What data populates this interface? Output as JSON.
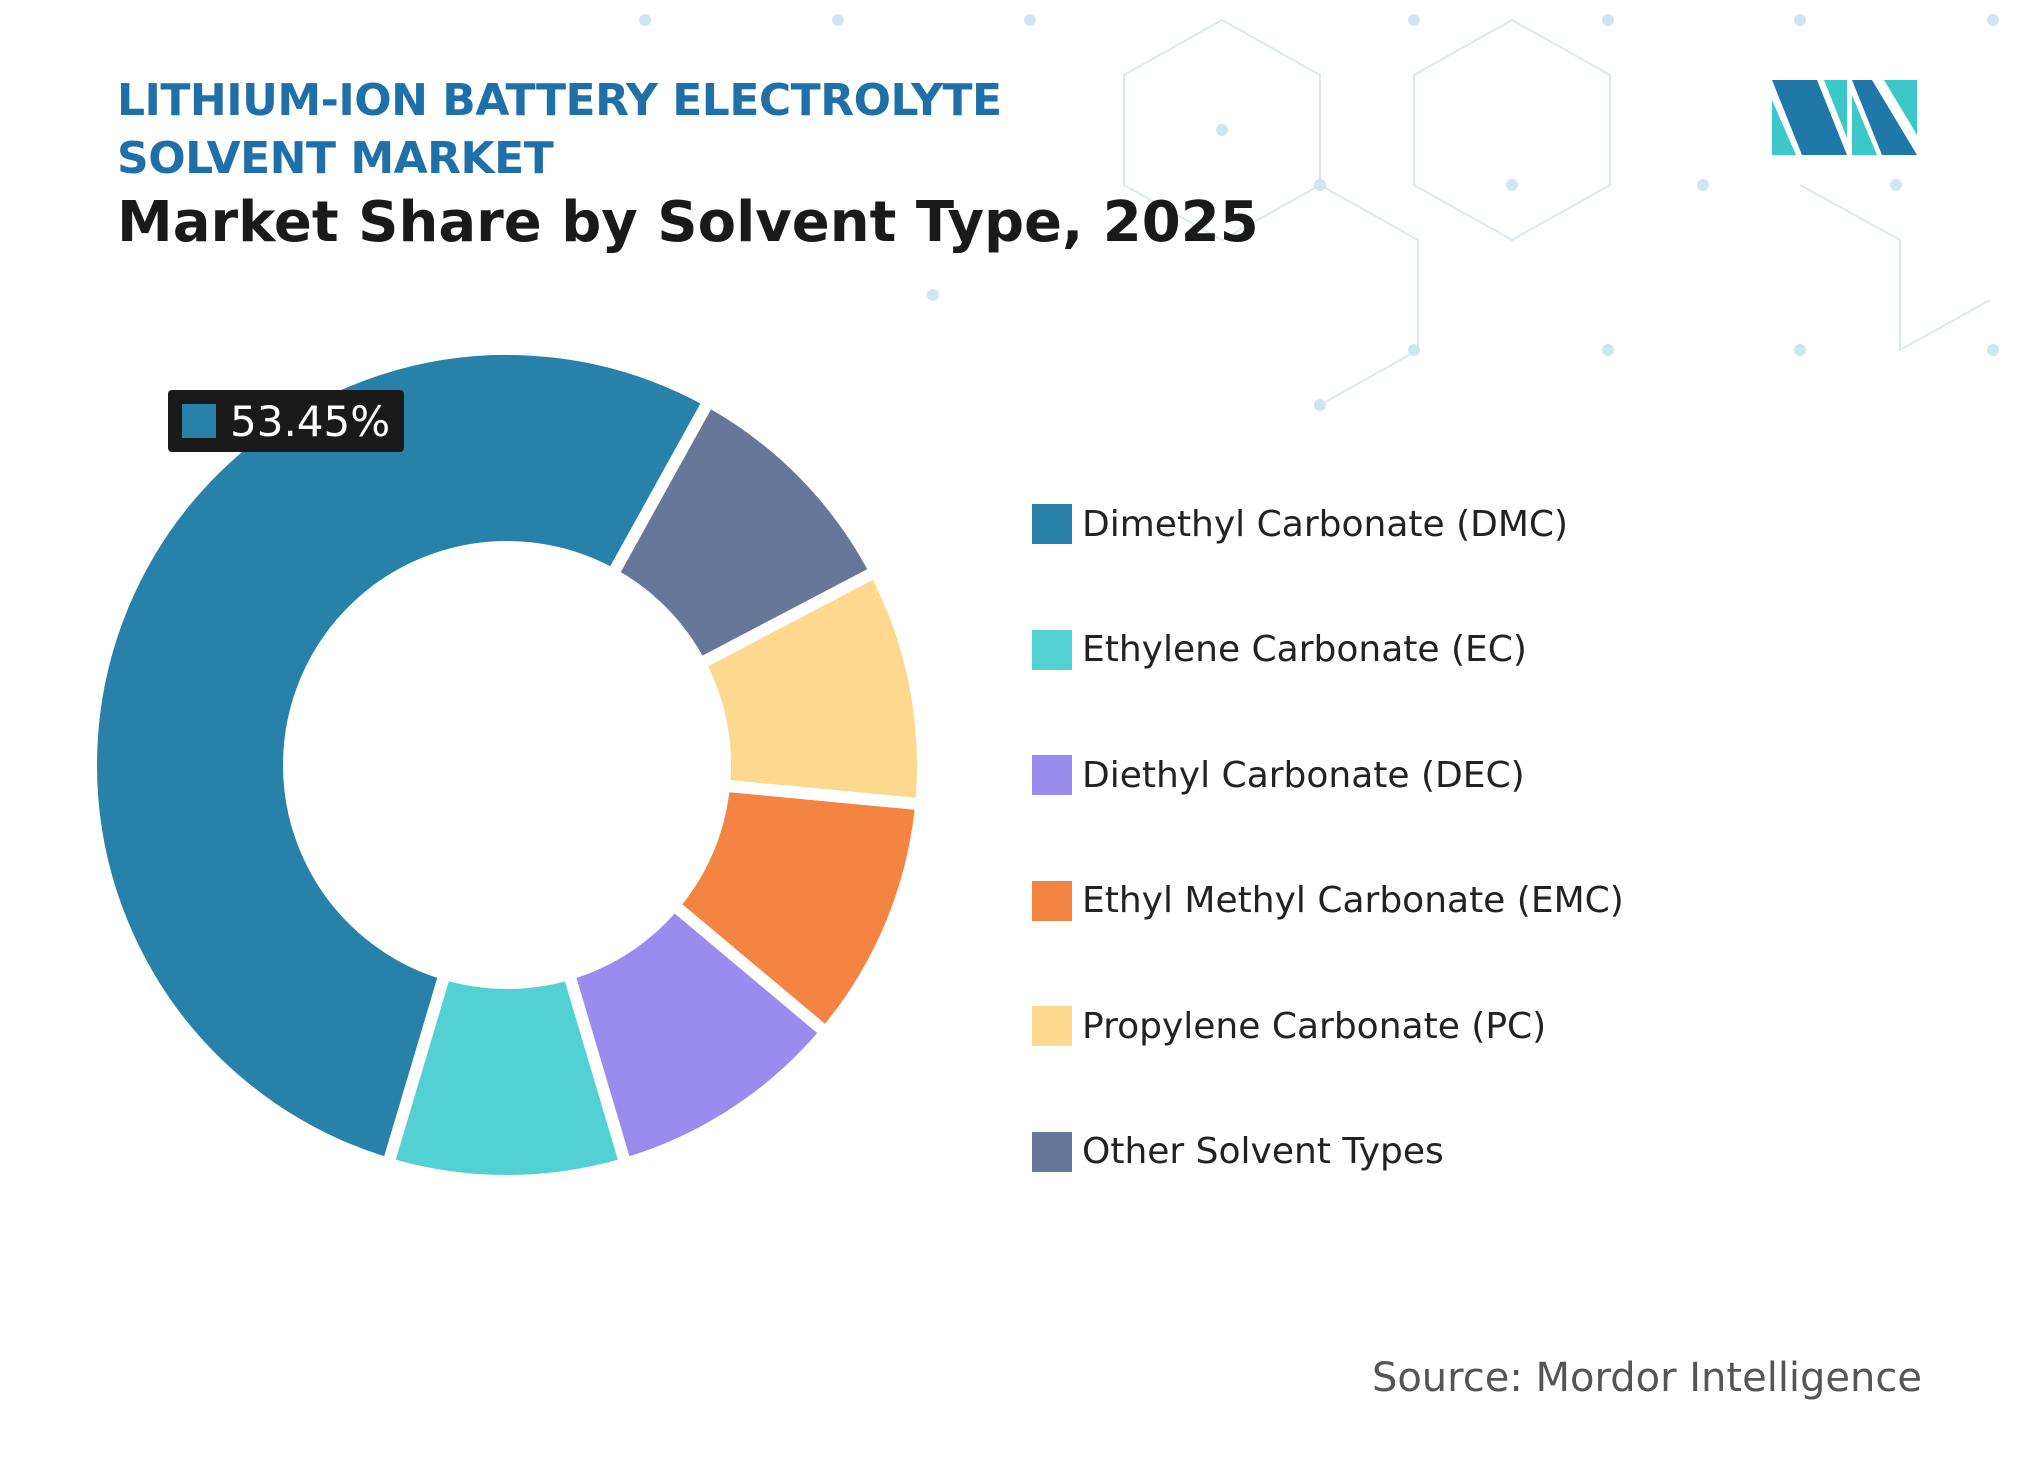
{
  "chart_data": {
    "type": "donut",
    "title": "LITHIUM-ION BATTERY ELECTROLYTE SOLVENT MARKET",
    "subtitle": "Market Share by Solvent Type, 2025",
    "categories": [
      "Dimethyl Carbonate (DMC)",
      "Ethylene Carbonate (EC)",
      "Diethyl Carbonate (DEC)",
      "Ethyl Methyl Carbonate (EMC)",
      "Propylene Carbonate (PC)",
      "Other Solvent Types"
    ],
    "values": [
      53.45,
      9.2,
      9.3,
      9.6,
      9.2,
      9.25
    ],
    "value_labels": [
      "53.45%",
      null,
      null,
      null,
      null,
      null
    ],
    "colors": [
      "#2781a8",
      "#52d0d3",
      "#9a8bef",
      "#f48441",
      "#fdd98f",
      "#667799"
    ],
    "source": "Source: Mordor Intelligence"
  }
}
